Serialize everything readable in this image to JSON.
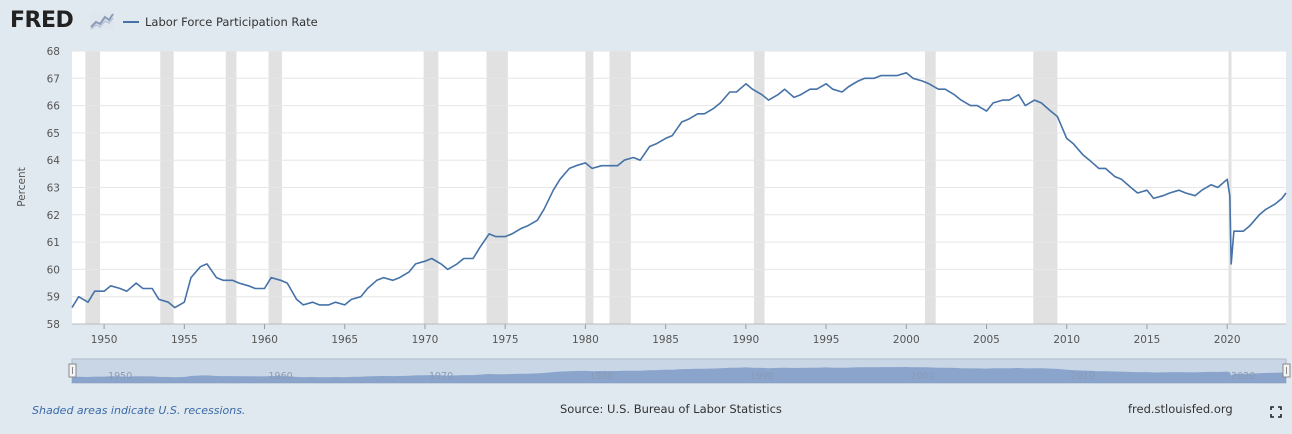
{
  "header": {
    "logo_text": "FRED",
    "logo_icon": "trend-graph-icon"
  },
  "chart_data": {
    "type": "line",
    "ylabel": "Percent",
    "ylim": [
      58,
      68
    ],
    "xlim": [
      "1948-01",
      "2023-09"
    ],
    "y_ticks": [
      "58",
      "59",
      "60",
      "61",
      "62",
      "63",
      "64",
      "65",
      "66",
      "67",
      "68"
    ],
    "x_ticks": [
      "1950",
      "1955",
      "1960",
      "1965",
      "1970",
      "1975",
      "1980",
      "1985",
      "1990",
      "1995",
      "2000",
      "2005",
      "2010",
      "2015",
      "2020"
    ],
    "grid": true,
    "legend_position": "top-left",
    "series": [
      {
        "name": "Labor Force Participation Rate",
        "color": "#4572a7",
        "x": [
          "1948-01",
          "1948-06",
          "1949-01",
          "1949-06",
          "1950-01",
          "1950-06",
          "1951-01",
          "1951-06",
          "1952-01",
          "1952-06",
          "1953-01",
          "1953-06",
          "1954-01",
          "1954-06",
          "1955-01",
          "1955-06",
          "1956-01",
          "1956-06",
          "1957-01",
          "1957-06",
          "1958-01",
          "1958-06",
          "1959-01",
          "1959-06",
          "1960-01",
          "1960-06",
          "1961-01",
          "1961-06",
          "1962-01",
          "1962-06",
          "1963-01",
          "1963-06",
          "1964-01",
          "1964-06",
          "1965-01",
          "1965-06",
          "1966-01",
          "1966-06",
          "1967-01",
          "1967-06",
          "1968-01",
          "1968-06",
          "1969-01",
          "1969-06",
          "1970-01",
          "1970-06",
          "1971-01",
          "1971-06",
          "1972-01",
          "1972-06",
          "1973-01",
          "1973-06",
          "1974-01",
          "1974-06",
          "1975-01",
          "1975-06",
          "1976-01",
          "1976-06",
          "1977-01",
          "1977-06",
          "1978-01",
          "1978-06",
          "1979-01",
          "1979-06",
          "1980-01",
          "1980-06",
          "1981-01",
          "1981-06",
          "1982-01",
          "1982-06",
          "1983-01",
          "1983-06",
          "1984-01",
          "1984-06",
          "1985-01",
          "1985-06",
          "1986-01",
          "1986-06",
          "1987-01",
          "1987-06",
          "1988-01",
          "1988-06",
          "1989-01",
          "1989-06",
          "1990-01",
          "1990-06",
          "1991-01",
          "1991-06",
          "1992-01",
          "1992-06",
          "1993-01",
          "1993-06",
          "1994-01",
          "1994-06",
          "1995-01",
          "1995-06",
          "1996-01",
          "1996-06",
          "1997-01",
          "1997-06",
          "1998-01",
          "1998-06",
          "1999-01",
          "1999-06",
          "2000-01",
          "2000-06",
          "2001-01",
          "2001-06",
          "2002-01",
          "2002-06",
          "2003-01",
          "2003-06",
          "2004-01",
          "2004-06",
          "2005-01",
          "2005-06",
          "2006-01",
          "2006-06",
          "2007-01",
          "2007-06",
          "2008-01",
          "2008-06",
          "2009-01",
          "2009-06",
          "2010-01",
          "2010-06",
          "2011-01",
          "2011-06",
          "2012-01",
          "2012-06",
          "2013-01",
          "2013-06",
          "2014-01",
          "2014-06",
          "2015-01",
          "2015-06",
          "2016-01",
          "2016-06",
          "2017-01",
          "2017-06",
          "2018-01",
          "2018-06",
          "2019-01",
          "2019-06",
          "2020-01",
          "2020-03",
          "2020-04",
          "2020-06",
          "2021-01",
          "2021-06",
          "2022-01",
          "2022-06",
          "2023-01",
          "2023-06",
          "2023-09"
        ],
        "values": [
          58.6,
          59.0,
          58.8,
          59.2,
          59.2,
          59.4,
          59.3,
          59.2,
          59.5,
          59.3,
          59.3,
          58.9,
          58.8,
          58.6,
          58.8,
          59.7,
          60.1,
          60.2,
          59.7,
          59.6,
          59.6,
          59.5,
          59.4,
          59.3,
          59.3,
          59.7,
          59.6,
          59.5,
          58.9,
          58.7,
          58.8,
          58.7,
          58.7,
          58.8,
          58.7,
          58.9,
          59.0,
          59.3,
          59.6,
          59.7,
          59.6,
          59.7,
          59.9,
          60.2,
          60.3,
          60.4,
          60.2,
          60.0,
          60.2,
          60.4,
          60.4,
          60.8,
          61.3,
          61.2,
          61.2,
          61.3,
          61.5,
          61.6,
          61.8,
          62.2,
          62.9,
          63.3,
          63.7,
          63.8,
          63.9,
          63.7,
          63.8,
          63.8,
          63.8,
          64.0,
          64.1,
          64.0,
          64.5,
          64.6,
          64.8,
          64.9,
          65.4,
          65.5,
          65.7,
          65.7,
          65.9,
          66.1,
          66.5,
          66.5,
          66.8,
          66.6,
          66.4,
          66.2,
          66.4,
          66.6,
          66.3,
          66.4,
          66.6,
          66.6,
          66.8,
          66.6,
          66.5,
          66.7,
          66.9,
          67.0,
          67.0,
          67.1,
          67.1,
          67.1,
          67.2,
          67.0,
          66.9,
          66.8,
          66.6,
          66.6,
          66.4,
          66.2,
          66.0,
          66.0,
          65.8,
          66.1,
          66.2,
          66.2,
          66.4,
          66.0,
          66.2,
          66.1,
          65.8,
          65.6,
          64.8,
          64.6,
          64.2,
          64.0,
          63.7,
          63.7,
          63.4,
          63.3,
          63.0,
          62.8,
          62.9,
          62.6,
          62.7,
          62.8,
          62.9,
          62.8,
          62.7,
          62.9,
          63.1,
          63.0,
          63.3,
          62.7,
          60.2,
          61.4,
          61.4,
          61.6,
          62.0,
          62.2,
          62.4,
          62.6,
          62.8
        ]
      }
    ],
    "recessions": [
      [
        "1948-11",
        "1949-10"
      ],
      [
        "1953-07",
        "1954-05"
      ],
      [
        "1957-08",
        "1958-04"
      ],
      [
        "1960-04",
        "1961-02"
      ],
      [
        "1969-12",
        "1970-11"
      ],
      [
        "1973-11",
        "1975-03"
      ],
      [
        "1980-01",
        "1980-07"
      ],
      [
        "1981-07",
        "1982-11"
      ],
      [
        "1990-07",
        "1991-03"
      ],
      [
        "2001-03",
        "2001-11"
      ],
      [
        "2007-12",
        "2009-06"
      ],
      [
        "2020-02",
        "2020-04"
      ]
    ]
  },
  "navigator": {
    "ticks": [
      "1950",
      "1960",
      "1970",
      "1980",
      "1990",
      "2000",
      "2010",
      "2020"
    ]
  },
  "footer": {
    "recession_note": "Shaded areas indicate U.S. recessions.",
    "source": "Source: U.S. Bureau of Labor Statistics",
    "site": "fred.stlouisfed.org"
  },
  "colors": {
    "line": "#4572a7",
    "recession_fill": "#e1e1e1",
    "background": "#e1e9f0",
    "plot_background": "#ffffff"
  }
}
